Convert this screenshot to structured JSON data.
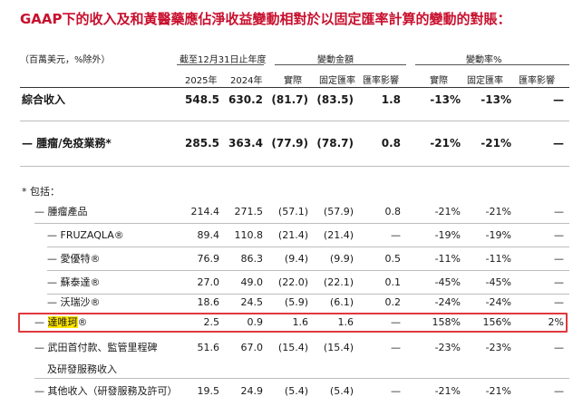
{
  "title": "GAAP下的收入及和黃醫藥應佔淨收益變動相對於以固定匯率計算的變動的對賬：",
  "header": {
    "unit_note": "（百萬美元，%除外）",
    "group_period": "截至12月31日止年度",
    "group_change_amount": "變動金額",
    "group_change_pct": "變動率%",
    "col_2025": "2025年",
    "col_2024": "2024年",
    "col_actual": "實際",
    "col_constant": "固定匯率",
    "col_fx": "匯率影響",
    "col_actual_pct": "實際",
    "col_constant_pct": "固定匯率",
    "col_fx_pct": "匯率影響"
  },
  "include_label": "* 包括：",
  "rows": [
    {
      "label": "綜合收入",
      "v2025": "548.5",
      "v2024": "630.2",
      "actual": "(81.7)",
      "constant": "(83.5)",
      "fx": "1.8",
      "actual_pct": "-13%",
      "constant_pct": "-13%",
      "fx_pct": "—"
    },
    {
      "label": "— 腫瘤/免疫業務*",
      "v2025": "285.5",
      "v2024": "363.4",
      "actual": "(77.9)",
      "constant": "(78.7)",
      "fx": "0.8",
      "actual_pct": "-21%",
      "constant_pct": "-21%",
      "fx_pct": "—"
    },
    {
      "label": "— 腫瘤產品",
      "v2025": "214.4",
      "v2024": "271.5",
      "actual": "(57.1)",
      "constant": "(57.9)",
      "fx": "0.8",
      "actual_pct": "-21%",
      "constant_pct": "-21%",
      "fx_pct": "—"
    },
    {
      "label": "— FRUZAQLA®",
      "v2025": "89.4",
      "v2024": "110.8",
      "actual": "(21.4)",
      "constant": "(21.4)",
      "fx": "—",
      "actual_pct": "-19%",
      "constant_pct": "-19%",
      "fx_pct": "—"
    },
    {
      "label": "— 愛優特®",
      "v2025": "76.9",
      "v2024": "86.3",
      "actual": "(9.4)",
      "constant": "(9.9)",
      "fx": "0.5",
      "actual_pct": "-11%",
      "constant_pct": "-11%",
      "fx_pct": "—"
    },
    {
      "label": "— 蘇泰達®",
      "v2025": "27.0",
      "v2024": "49.0",
      "actual": "(22.0)",
      "constant": "(22.1)",
      "fx": "0.1",
      "actual_pct": "-45%",
      "constant_pct": "-45%",
      "fx_pct": "—"
    },
    {
      "label": "— 沃瑞沙®",
      "v2025": "18.6",
      "v2024": "24.5",
      "actual": "(5.9)",
      "constant": "(6.1)",
      "fx": "0.2",
      "actual_pct": "-24%",
      "constant_pct": "-24%",
      "fx_pct": "—"
    },
    {
      "label_prefix": "— ",
      "label_hl": "達唯珂",
      "label_suffix": "®",
      "v2025": "2.5",
      "v2024": "0.9",
      "actual": "1.6",
      "constant": "1.6",
      "fx": "—",
      "actual_pct": "158%",
      "constant_pct": "156%",
      "fx_pct": "2%"
    },
    {
      "label": "— 武田首付款、監管里程碑",
      "label_line2": "及研發服務收入",
      "v2025": "51.6",
      "v2024": "67.0",
      "actual": "(15.4)",
      "constant": "(15.4)",
      "fx": "—",
      "actual_pct": "-23%",
      "constant_pct": "-23%",
      "fx_pct": "—"
    },
    {
      "label": "— 其他收入（研發服務及許可）",
      "v2025": "19.5",
      "v2024": "24.9",
      "actual": "(5.4)",
      "constant": "(5.4)",
      "fx": "—",
      "actual_pct": "-21%",
      "constant_pct": "-21%",
      "fx_pct": "—"
    }
  ]
}
